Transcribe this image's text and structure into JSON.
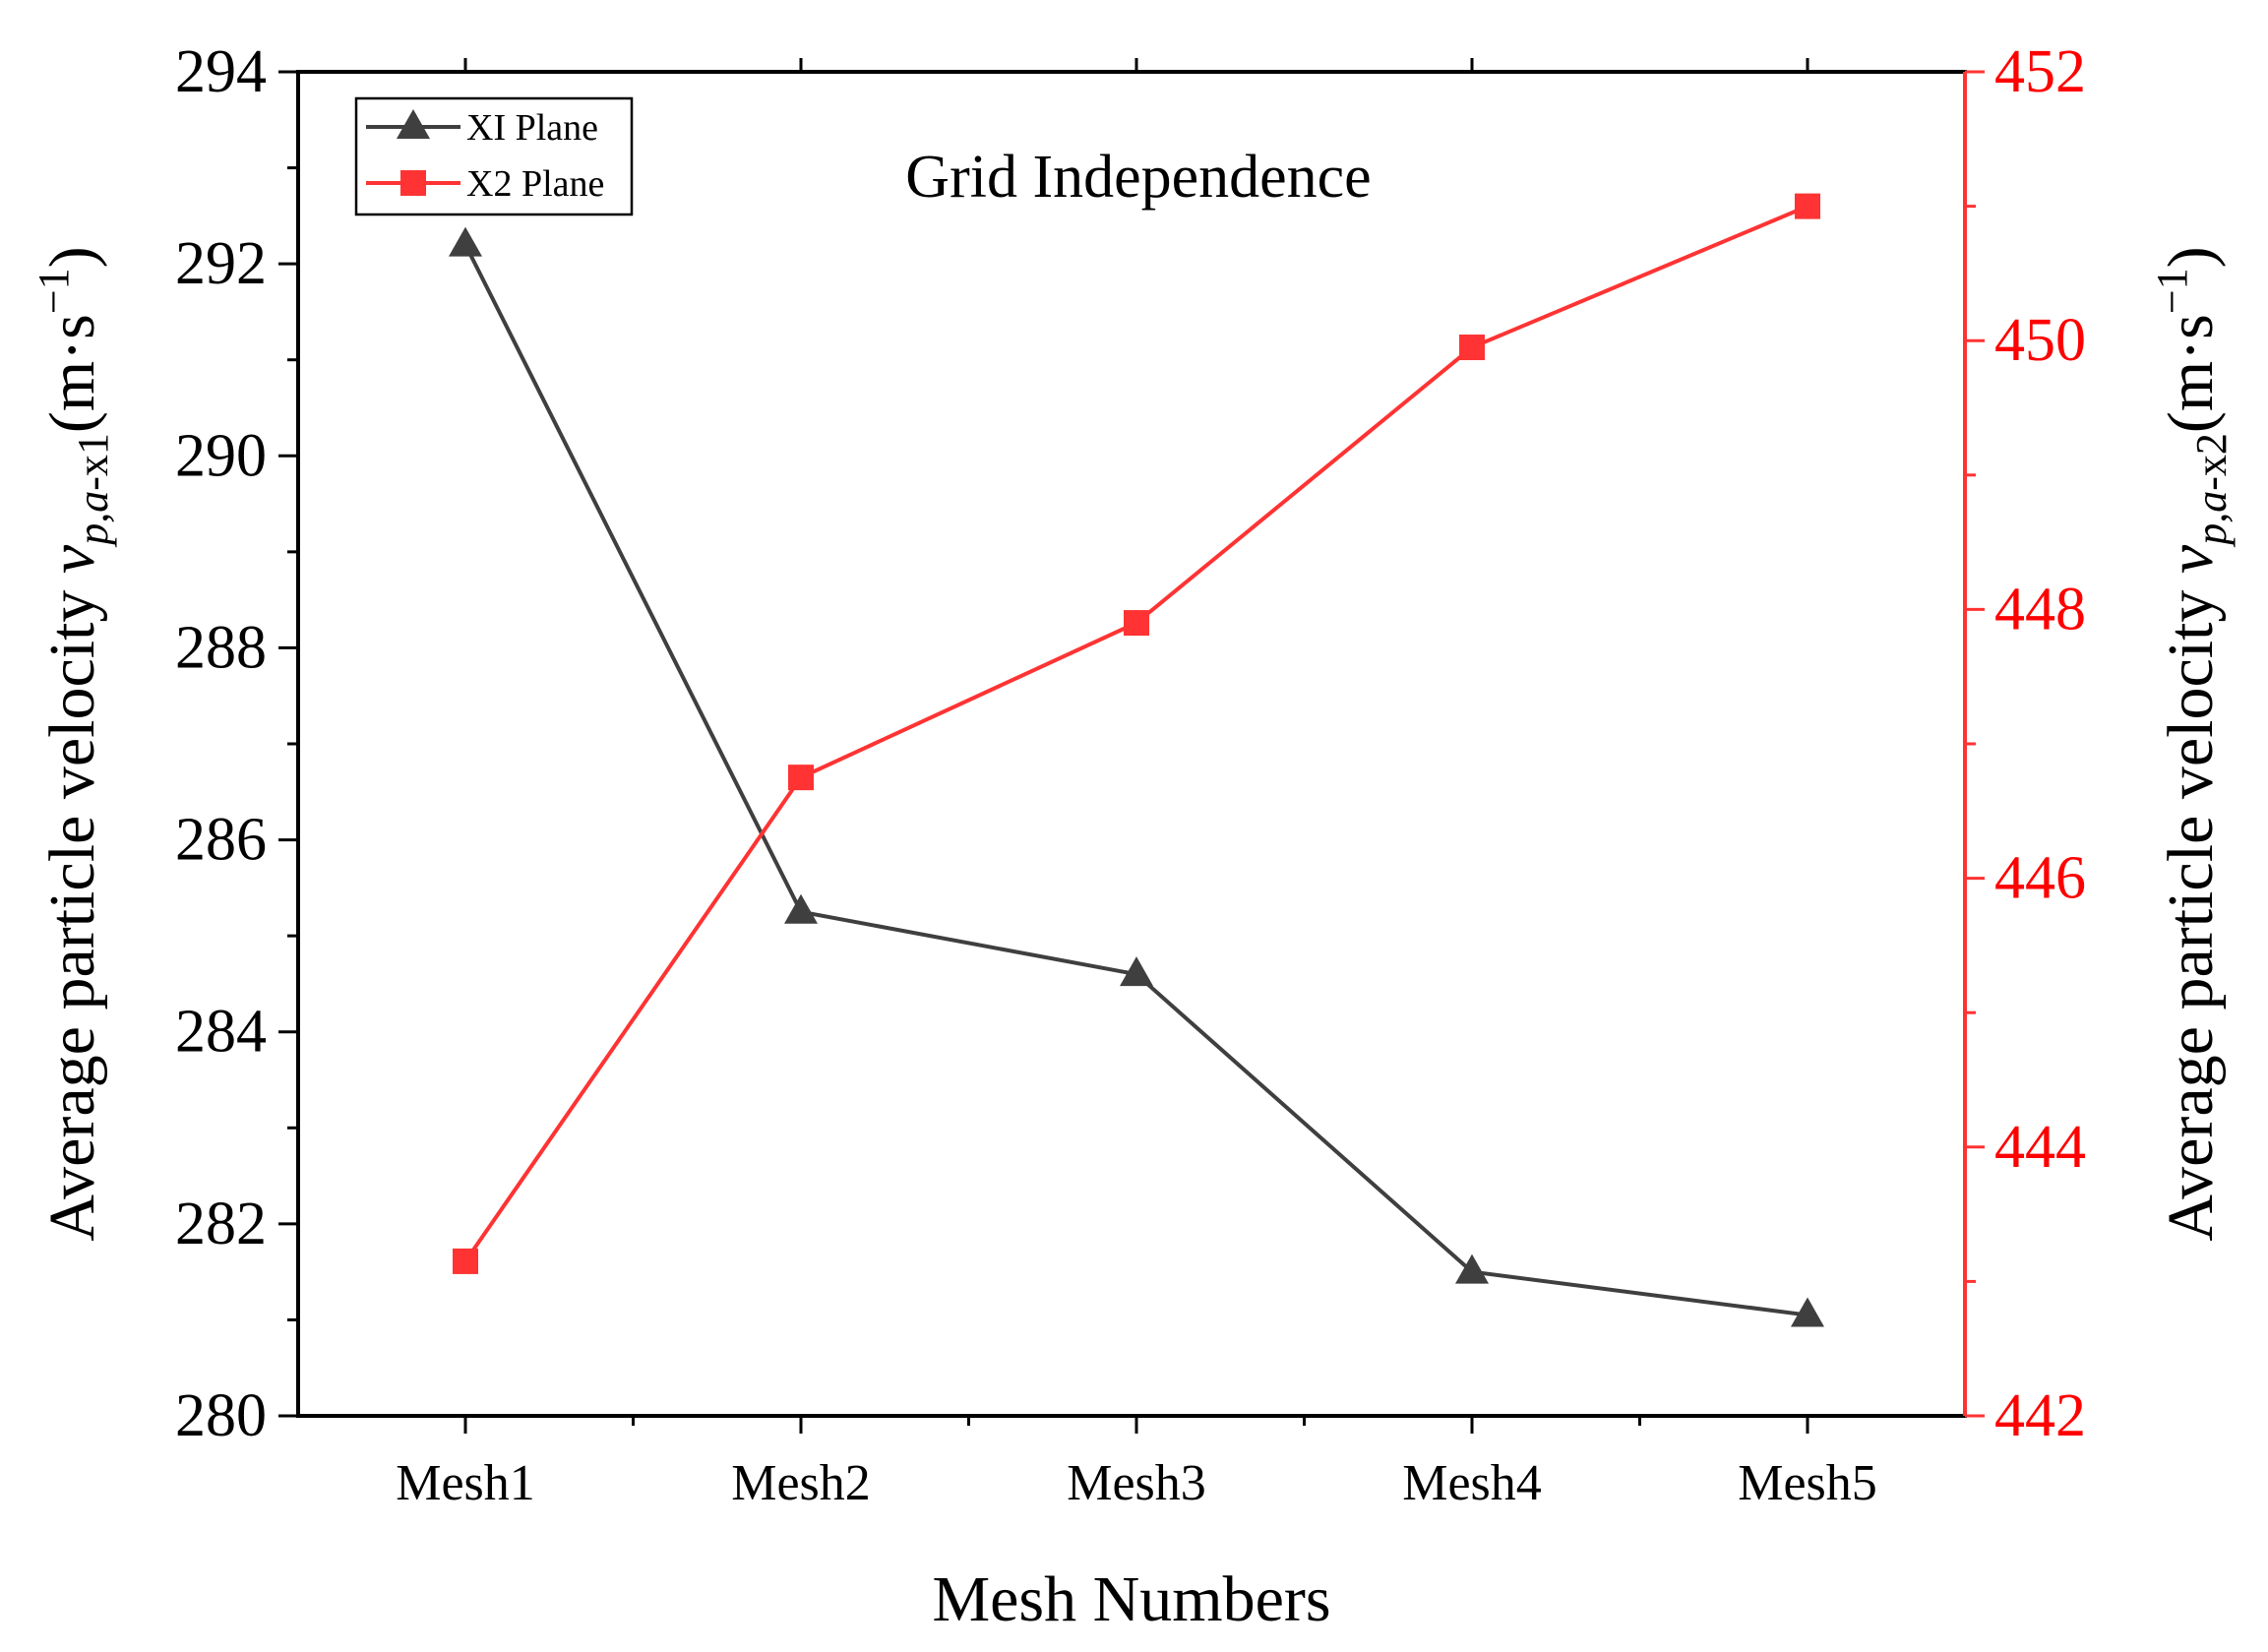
{
  "chart_data": {
    "type": "line",
    "title": "Grid Independence",
    "xlabel": "Mesh Numbers",
    "categories": [
      "Mesh1",
      "Mesh2",
      "Mesh3",
      "Mesh4",
      "Mesh5"
    ],
    "y_left": {
      "label_text": "Average particle velocity ",
      "label_var": "v",
      "label_sub": "p,a",
      "label_sub_tail": "-x1",
      "label_unit": "(m·s",
      "label_exp": "−1",
      "label_close": ")",
      "range": [
        280,
        294
      ],
      "ticks": [
        "280",
        "282",
        "284",
        "286",
        "288",
        "290",
        "292",
        "294"
      ],
      "color": "#000000"
    },
    "y_right": {
      "label_text": "Average particle velocity ",
      "label_var": "v",
      "label_sub": "p,a",
      "label_sub_tail": "-x2",
      "label_unit": "(m·s",
      "label_exp": "−1",
      "label_close": ")",
      "range": [
        442,
        452
      ],
      "ticks": [
        "442",
        "444",
        "446",
        "448",
        "450",
        "452"
      ],
      "color": "#ff0000"
    },
    "series": [
      {
        "name": "XI Plane",
        "axis": "left",
        "marker": "triangle",
        "color": "#3f3f3f",
        "values": [
          292.2,
          285.25,
          284.6,
          281.5,
          281.05
        ]
      },
      {
        "name": "X2 Plane",
        "axis": "right",
        "marker": "square",
        "color": "#ff3333",
        "values": [
          443.15,
          446.75,
          447.9,
          449.95,
          451.0
        ]
      }
    ]
  }
}
